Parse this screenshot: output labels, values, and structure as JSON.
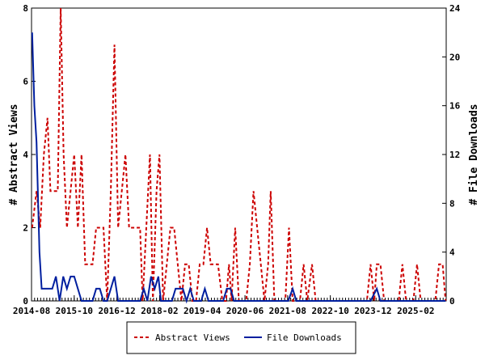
{
  "chart_data": {
    "type": "line",
    "xlabel": "",
    "ylabel_left": "# Abstract Views",
    "ylabel_right": "# File Downloads",
    "ylim_left": [
      0,
      8
    ],
    "ylim_right": [
      0,
      24
    ],
    "yticks_left": [
      "0",
      "2",
      "4",
      "6",
      "8"
    ],
    "yticks_right": [
      "0",
      "4",
      "8",
      "12",
      "16",
      "20",
      "24"
    ],
    "grid": false,
    "legend_position": "bottom-center",
    "x_tick_labels": [
      "2014-08",
      "2015-10",
      "2016-12",
      "2018-02",
      "2019-04",
      "2020-06",
      "2021-08",
      "2022-10",
      "2023-12",
      "2025-02"
    ],
    "series": [
      {
        "name": "Abstract Views",
        "axis": "left",
        "color": "#cc0000",
        "dash": "dashed",
        "points": [
          [
            2014.6,
            2
          ],
          [
            2014.72,
            3
          ],
          [
            2014.82,
            2
          ],
          [
            2014.92,
            4
          ],
          [
            2015.02,
            5
          ],
          [
            2015.1,
            3
          ],
          [
            2015.2,
            3
          ],
          [
            2015.3,
            3
          ],
          [
            2015.38,
            8
          ],
          [
            2015.46,
            4
          ],
          [
            2015.55,
            2
          ],
          [
            2015.65,
            3
          ],
          [
            2015.75,
            4
          ],
          [
            2015.85,
            2
          ],
          [
            2015.95,
            4
          ],
          [
            2016.05,
            1
          ],
          [
            2016.15,
            1
          ],
          [
            2016.25,
            1
          ],
          [
            2016.35,
            2
          ],
          [
            2016.45,
            2
          ],
          [
            2016.55,
            2
          ],
          [
            2016.65,
            0
          ],
          [
            2016.75,
            3
          ],
          [
            2016.85,
            7
          ],
          [
            2016.95,
            2
          ],
          [
            2017.05,
            3
          ],
          [
            2017.15,
            4
          ],
          [
            2017.25,
            2
          ],
          [
            2017.35,
            2
          ],
          [
            2017.45,
            2
          ],
          [
            2017.55,
            2
          ],
          [
            2017.62,
            0
          ],
          [
            2017.72,
            2
          ],
          [
            2017.82,
            4
          ],
          [
            2017.9,
            0
          ],
          [
            2018.0,
            3
          ],
          [
            2018.08,
            4
          ],
          [
            2018.18,
            0
          ],
          [
            2018.28,
            1
          ],
          [
            2018.38,
            2
          ],
          [
            2018.48,
            2
          ],
          [
            2018.58,
            1
          ],
          [
            2018.68,
            0
          ],
          [
            2018.78,
            1
          ],
          [
            2018.88,
            1
          ],
          [
            2018.98,
            0
          ],
          [
            2019.08,
            0
          ],
          [
            2019.18,
            1
          ],
          [
            2019.28,
            1
          ],
          [
            2019.38,
            2
          ],
          [
            2019.48,
            1
          ],
          [
            2019.58,
            1
          ],
          [
            2019.68,
            1
          ],
          [
            2019.8,
            0
          ],
          [
            2019.9,
            0
          ],
          [
            2019.98,
            1
          ],
          [
            2020.05,
            0
          ],
          [
            2020.15,
            2
          ],
          [
            2020.25,
            0
          ],
          [
            2020.35,
            0
          ],
          [
            2020.45,
            0
          ],
          [
            2020.55,
            1
          ],
          [
            2020.65,
            3
          ],
          [
            2020.75,
            2
          ],
          [
            2020.85,
            1
          ],
          [
            2020.95,
            0
          ],
          [
            2021.05,
            1
          ],
          [
            2021.12,
            3
          ],
          [
            2021.22,
            0
          ],
          [
            2021.32,
            0
          ],
          [
            2021.42,
            0
          ],
          [
            2021.52,
            0
          ],
          [
            2021.62,
            2
          ],
          [
            2021.72,
            0
          ],
          [
            2021.82,
            0
          ],
          [
            2021.92,
            0
          ],
          [
            2022.02,
            1
          ],
          [
            2022.12,
            0
          ],
          [
            2022.25,
            1
          ],
          [
            2022.35,
            0
          ],
          [
            2022.45,
            0
          ],
          [
            2022.55,
            0
          ],
          [
            2022.65,
            0
          ],
          [
            2022.75,
            0
          ],
          [
            2022.85,
            0
          ],
          [
            2022.95,
            0
          ],
          [
            2023.05,
            0
          ],
          [
            2023.15,
            0
          ],
          [
            2023.25,
            0
          ],
          [
            2023.35,
            0
          ],
          [
            2023.45,
            0
          ],
          [
            2023.55,
            0
          ],
          [
            2023.65,
            0
          ],
          [
            2023.75,
            0
          ],
          [
            2023.85,
            1
          ],
          [
            2023.95,
            0
          ],
          [
            2024.02,
            1
          ],
          [
            2024.12,
            1
          ],
          [
            2024.22,
            0
          ],
          [
            2024.32,
            0
          ],
          [
            2024.42,
            0
          ],
          [
            2024.52,
            0
          ],
          [
            2024.62,
            0
          ],
          [
            2024.72,
            1
          ],
          [
            2024.82,
            0
          ],
          [
            2024.92,
            0
          ],
          [
            2025.02,
            0
          ],
          [
            2025.12,
            1
          ],
          [
            2025.22,
            0
          ],
          [
            2025.32,
            0
          ],
          [
            2025.42,
            0
          ],
          [
            2025.52,
            0
          ],
          [
            2025.62,
            0
          ],
          [
            2025.72,
            1
          ],
          [
            2025.82,
            1
          ],
          [
            2025.9,
            0
          ]
        ]
      },
      {
        "name": "File Downloads",
        "axis": "right",
        "color": "#001f9f",
        "dash": "solid",
        "points": [
          [
            2014.6,
            22
          ],
          [
            2014.66,
            16
          ],
          [
            2014.72,
            13
          ],
          [
            2014.8,
            4
          ],
          [
            2014.86,
            1
          ],
          [
            2014.95,
            1
          ],
          [
            2015.05,
            1
          ],
          [
            2015.15,
            1
          ],
          [
            2015.25,
            2
          ],
          [
            2015.35,
            0
          ],
          [
            2015.45,
            2
          ],
          [
            2015.55,
            1
          ],
          [
            2015.65,
            2
          ],
          [
            2015.75,
            2
          ],
          [
            2015.85,
            1
          ],
          [
            2015.95,
            0
          ],
          [
            2016.05,
            0
          ],
          [
            2016.15,
            0
          ],
          [
            2016.25,
            0
          ],
          [
            2016.35,
            1
          ],
          [
            2016.45,
            1
          ],
          [
            2016.55,
            0
          ],
          [
            2016.65,
            0
          ],
          [
            2016.75,
            1
          ],
          [
            2016.85,
            2
          ],
          [
            2016.95,
            0
          ],
          [
            2017.05,
            0
          ],
          [
            2017.15,
            0
          ],
          [
            2017.25,
            0
          ],
          [
            2017.35,
            0
          ],
          [
            2017.45,
            0
          ],
          [
            2017.55,
            0
          ],
          [
            2017.65,
            1
          ],
          [
            2017.75,
            0
          ],
          [
            2017.85,
            2
          ],
          [
            2017.95,
            1
          ],
          [
            2018.05,
            2
          ],
          [
            2018.12,
            0
          ],
          [
            2018.22,
            0
          ],
          [
            2018.32,
            0
          ],
          [
            2018.42,
            0
          ],
          [
            2018.52,
            1
          ],
          [
            2018.62,
            1
          ],
          [
            2018.72,
            1
          ],
          [
            2018.82,
            0
          ],
          [
            2018.92,
            1
          ],
          [
            2019.02,
            0
          ],
          [
            2019.12,
            0
          ],
          [
            2019.22,
            0
          ],
          [
            2019.32,
            1
          ],
          [
            2019.42,
            0
          ],
          [
            2019.52,
            0
          ],
          [
            2019.62,
            0
          ],
          [
            2019.72,
            0
          ],
          [
            2019.82,
            0
          ],
          [
            2019.92,
            1
          ],
          [
            2020.02,
            1
          ],
          [
            2020.12,
            0
          ],
          [
            2020.25,
            0
          ],
          [
            2021.5,
            0
          ],
          [
            2021.6,
            0
          ],
          [
            2021.72,
            1
          ],
          [
            2021.82,
            0
          ],
          [
            2023.85,
            0
          ],
          [
            2024.02,
            1
          ],
          [
            2024.12,
            0
          ],
          [
            2025.9,
            0
          ]
        ]
      }
    ]
  }
}
